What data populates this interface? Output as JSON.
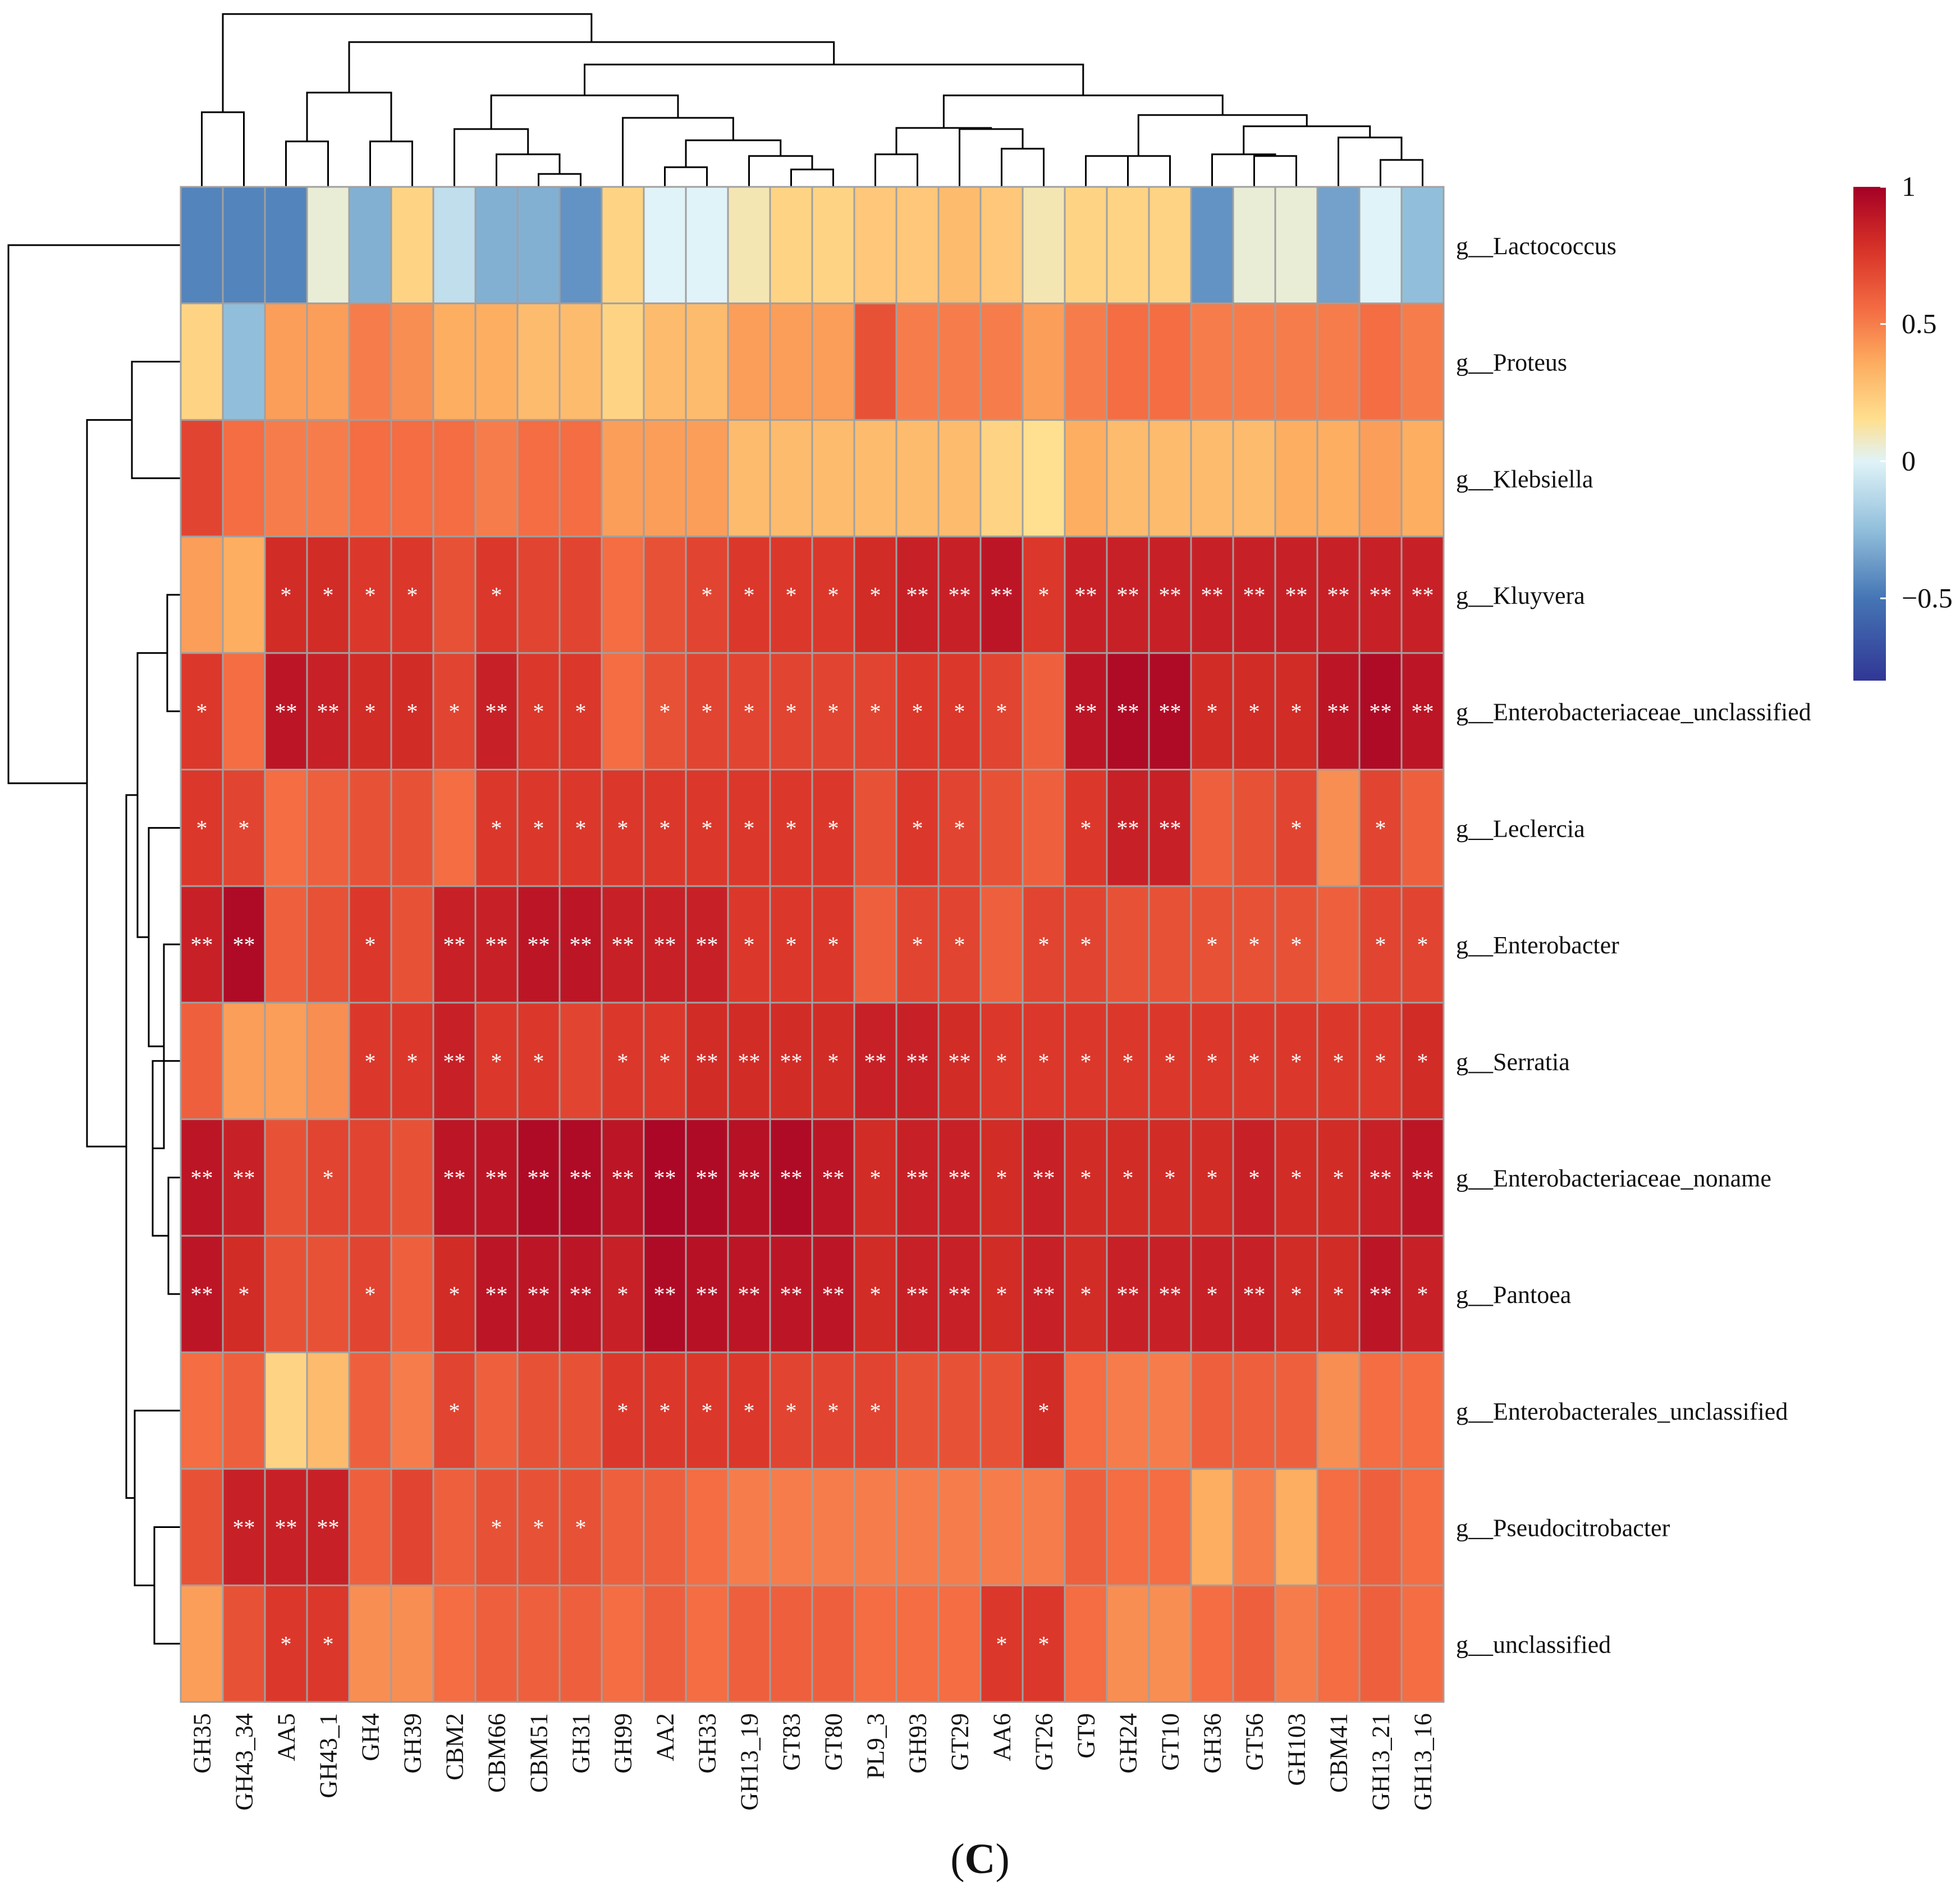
{
  "chart_data": {
    "type": "heatmap",
    "title": "",
    "caption_open": "(",
    "caption_letter": "C",
    "caption_close": ")",
    "columns": [
      "GH35",
      "GH43_34",
      "AA5",
      "GH43_1",
      "GH4",
      "GH39",
      "CBM2",
      "CBM66",
      "CBM51",
      "GH31",
      "GH99",
      "AA2",
      "GH33",
      "GH13_19",
      "GT83",
      "GT80",
      "PL9_3",
      "GH93",
      "GT29",
      "AA6",
      "GT26",
      "GT9",
      "GH24",
      "GT10",
      "GH36",
      "GT56",
      "GH103",
      "CBM41",
      "GH13_21",
      "GH13_16"
    ],
    "rows": [
      "g__Lactococcus",
      "g__Proteus",
      "g__Klebsiella",
      "g__Kluyvera",
      "g__Enterobacteriaceae_unclassified",
      "g__Leclercia",
      "g__Enterobacter",
      "g__Serratia",
      "g__Enterobacteriaceae_noname",
      "g__Pantoea",
      "g__Enterobacterales_unclassified",
      "g__Pseudocitrobacter",
      "g__unclassified"
    ],
    "values": [
      [
        -0.45,
        -0.45,
        -0.45,
        0.05,
        -0.3,
        0.2,
        -0.1,
        -0.3,
        -0.3,
        -0.4,
        0.2,
        0.0,
        0.0,
        0.1,
        0.2,
        0.2,
        0.25,
        0.25,
        0.3,
        0.25,
        0.1,
        0.2,
        0.2,
        0.2,
        -0.4,
        0.05,
        0.05,
        -0.35,
        0.0,
        -0.25
      ],
      [
        0.2,
        -0.25,
        0.4,
        0.4,
        0.5,
        0.45,
        0.35,
        0.35,
        0.3,
        0.3,
        0.2,
        0.3,
        0.3,
        0.4,
        0.4,
        0.4,
        0.65,
        0.5,
        0.5,
        0.5,
        0.4,
        0.5,
        0.55,
        0.55,
        0.5,
        0.5,
        0.5,
        0.5,
        0.55,
        0.5
      ],
      [
        0.7,
        0.55,
        0.5,
        0.5,
        0.55,
        0.55,
        0.55,
        0.5,
        0.55,
        0.55,
        0.4,
        0.4,
        0.4,
        0.3,
        0.3,
        0.3,
        0.3,
        0.3,
        0.3,
        0.2,
        0.15,
        0.35,
        0.3,
        0.3,
        0.3,
        0.3,
        0.35,
        0.35,
        0.4,
        0.35
      ],
      [
        0.4,
        0.35,
        0.8,
        0.8,
        0.75,
        0.75,
        0.65,
        0.75,
        0.7,
        0.7,
        0.55,
        0.65,
        0.7,
        0.75,
        0.75,
        0.75,
        0.8,
        0.85,
        0.85,
        0.9,
        0.75,
        0.85,
        0.85,
        0.85,
        0.85,
        0.85,
        0.85,
        0.85,
        0.85,
        0.85
      ],
      [
        0.75,
        0.55,
        0.9,
        0.85,
        0.8,
        0.8,
        0.7,
        0.85,
        0.75,
        0.75,
        0.55,
        0.65,
        0.7,
        0.7,
        0.7,
        0.7,
        0.7,
        0.75,
        0.75,
        0.7,
        0.6,
        0.9,
        0.95,
        0.95,
        0.8,
        0.8,
        0.8,
        0.9,
        0.95,
        0.9
      ],
      [
        0.75,
        0.7,
        0.55,
        0.6,
        0.65,
        0.65,
        0.55,
        0.75,
        0.75,
        0.75,
        0.75,
        0.75,
        0.75,
        0.75,
        0.75,
        0.75,
        0.65,
        0.75,
        0.7,
        0.65,
        0.6,
        0.75,
        0.85,
        0.85,
        0.6,
        0.65,
        0.7,
        0.45,
        0.7,
        0.6
      ],
      [
        0.85,
        0.95,
        0.6,
        0.65,
        0.75,
        0.65,
        0.85,
        0.85,
        0.9,
        0.9,
        0.85,
        0.85,
        0.85,
        0.75,
        0.75,
        0.75,
        0.6,
        0.7,
        0.7,
        0.6,
        0.7,
        0.7,
        0.65,
        0.65,
        0.65,
        0.65,
        0.65,
        0.6,
        0.7,
        0.7
      ],
      [
        0.6,
        0.4,
        0.4,
        0.45,
        0.75,
        0.75,
        0.85,
        0.75,
        0.75,
        0.7,
        0.75,
        0.75,
        0.8,
        0.8,
        0.8,
        0.8,
        0.85,
        0.85,
        0.8,
        0.75,
        0.75,
        0.75,
        0.75,
        0.75,
        0.75,
        0.75,
        0.75,
        0.75,
        0.75,
        0.8
      ],
      [
        0.9,
        0.85,
        0.65,
        0.7,
        0.7,
        0.65,
        0.9,
        0.9,
        0.95,
        0.95,
        0.9,
        0.97,
        0.95,
        0.92,
        0.95,
        0.9,
        0.8,
        0.85,
        0.85,
        0.8,
        0.85,
        0.8,
        0.8,
        0.8,
        0.8,
        0.85,
        0.8,
        0.8,
        0.85,
        0.9
      ],
      [
        0.9,
        0.8,
        0.65,
        0.65,
        0.7,
        0.6,
        0.8,
        0.9,
        0.9,
        0.9,
        0.85,
        0.95,
        0.92,
        0.9,
        0.9,
        0.9,
        0.8,
        0.85,
        0.85,
        0.8,
        0.85,
        0.8,
        0.85,
        0.85,
        0.85,
        0.85,
        0.8,
        0.8,
        0.9,
        0.85
      ],
      [
        0.55,
        0.6,
        0.2,
        0.3,
        0.6,
        0.5,
        0.7,
        0.6,
        0.65,
        0.65,
        0.75,
        0.75,
        0.75,
        0.75,
        0.7,
        0.7,
        0.7,
        0.65,
        0.65,
        0.65,
        0.8,
        0.55,
        0.5,
        0.5,
        0.6,
        0.6,
        0.6,
        0.45,
        0.55,
        0.55
      ],
      [
        0.65,
        0.85,
        0.85,
        0.85,
        0.6,
        0.7,
        0.6,
        0.65,
        0.65,
        0.65,
        0.6,
        0.6,
        0.55,
        0.5,
        0.5,
        0.5,
        0.5,
        0.5,
        0.5,
        0.5,
        0.5,
        0.6,
        0.55,
        0.55,
        0.35,
        0.5,
        0.35,
        0.55,
        0.6,
        0.55
      ],
      [
        0.4,
        0.65,
        0.75,
        0.75,
        0.45,
        0.45,
        0.55,
        0.6,
        0.6,
        0.6,
        0.55,
        0.6,
        0.55,
        0.6,
        0.6,
        0.6,
        0.55,
        0.55,
        0.55,
        0.75,
        0.75,
        0.55,
        0.45,
        0.45,
        0.55,
        0.6,
        0.5,
        0.55,
        0.6,
        0.55
      ]
    ],
    "significance": [
      [
        "",
        "",
        "",
        "",
        "",
        "",
        "",
        "",
        "",
        "",
        "",
        "",
        "",
        "",
        "",
        "",
        "",
        "",
        "",
        "",
        "",
        "",
        "",
        "",
        "",
        "",
        "",
        "",
        "",
        ""
      ],
      [
        "",
        "",
        "",
        "",
        "",
        "",
        "",
        "",
        "",
        "",
        "",
        "",
        "",
        "",
        "",
        "",
        "",
        "",
        "",
        "",
        "",
        "",
        "",
        "",
        "",
        "",
        "",
        "",
        "",
        ""
      ],
      [
        "",
        "",
        "",
        "",
        "",
        "",
        "",
        "",
        "",
        "",
        "",
        "",
        "",
        "",
        "",
        "",
        "",
        "",
        "",
        "",
        "",
        "",
        "",
        "",
        "",
        "",
        "",
        "",
        "",
        ""
      ],
      [
        "",
        "",
        "*",
        "*",
        "*",
        "*",
        "",
        "*",
        "",
        "",
        "",
        "",
        "*",
        "*",
        "*",
        "*",
        "*",
        "**",
        "**",
        "**",
        "*",
        "**",
        "**",
        "**",
        "**",
        "**",
        "**",
        "**",
        "**",
        "**"
      ],
      [
        "*",
        "",
        "**",
        "**",
        "*",
        "*",
        "*",
        "**",
        "*",
        "*",
        "",
        "*",
        "*",
        "*",
        "*",
        "*",
        "*",
        "*",
        "*",
        "*",
        "",
        "**",
        "**",
        "**",
        "*",
        "*",
        "*",
        "**",
        "**",
        "**"
      ],
      [
        "*",
        "*",
        "",
        "",
        "",
        "",
        "",
        "*",
        "*",
        "*",
        "*",
        "*",
        "*",
        "*",
        "*",
        "*",
        "",
        "*",
        "*",
        "",
        "",
        "*",
        "**",
        "**",
        "",
        "",
        "*",
        "",
        "*",
        ""
      ],
      [
        "**",
        "**",
        "",
        "",
        "*",
        "",
        "**",
        "**",
        "**",
        "**",
        "**",
        "**",
        "**",
        "*",
        "*",
        "*",
        "",
        "*",
        "*",
        "",
        "*",
        "*",
        "",
        "",
        "*",
        "*",
        "*",
        "",
        "*",
        "*"
      ],
      [
        "",
        "",
        "",
        "",
        "*",
        "*",
        "**",
        "*",
        "*",
        "",
        "*",
        "*",
        "**",
        "**",
        "**",
        "*",
        "**",
        "**",
        "**",
        "*",
        "*",
        "*",
        "*",
        "*",
        "*",
        "*",
        "*",
        "*",
        "*",
        "*"
      ],
      [
        "**",
        "**",
        "",
        "*",
        "",
        "",
        "**",
        "**",
        "**",
        "**",
        "**",
        "**",
        "**",
        "**",
        "**",
        "**",
        "*",
        "**",
        "**",
        "*",
        "**",
        "*",
        "*",
        "*",
        "*",
        "*",
        "*",
        "*",
        "**",
        "**"
      ],
      [
        "**",
        "*",
        "",
        "",
        "*",
        "",
        "*",
        "**",
        "**",
        "**",
        "*",
        "**",
        "**",
        "**",
        "**",
        "**",
        "*",
        "**",
        "**",
        "*",
        "**",
        "*",
        "**",
        "**",
        "*",
        "**",
        "*",
        "*",
        "**",
        "*"
      ],
      [
        "",
        "",
        "",
        "",
        "",
        "",
        "*",
        "",
        "",
        "",
        "*",
        "*",
        "*",
        "*",
        "*",
        "*",
        "*",
        "",
        "",
        "",
        "*",
        "",
        "",
        "",
        "",
        "",
        "",
        "",
        "",
        ""
      ],
      [
        "",
        "**",
        "**",
        "**",
        "",
        "",
        "",
        "*",
        "*",
        "*",
        "",
        "",
        "",
        "",
        "",
        "",
        "",
        "",
        "",
        "",
        "",
        "",
        "",
        "",
        "",
        "",
        "",
        "",
        "",
        ""
      ],
      [
        "",
        "",
        "*",
        "*",
        "",
        "",
        "",
        "",
        "",
        "",
        "",
        "",
        "",
        "",
        "",
        "",
        "",
        "",
        "",
        "*",
        "*",
        "",
        "",
        "",
        "",
        "",
        "",
        "",
        "",
        ""
      ]
    ],
    "col_dendrogram": [
      [
        0,
        1,
        0.74,
        2
      ],
      [
        2,
        3,
        0.78,
        2
      ],
      [
        4,
        5,
        0.78,
        2
      ],
      [
        35,
        36,
        0.61,
        4
      ],
      [
        12,
        13,
        0.42,
        2
      ],
      [
        14,
        15,
        0.42,
        2
      ],
      [
        37,
        38,
        0.27,
        4
      ],
      [
        9,
        40,
        0.46,
        5
      ],
      [
        8,
        41,
        0.6,
        6
      ],
      [
        7,
        42,
        0.74,
        7
      ],
      [
        10,
        11,
        0.46,
        2
      ],
      [
        44,
        39,
        0.66,
        6
      ],
      [
        45,
        38,
        0.56,
        3
      ],
      [
        6,
        43,
        0.9,
        8
      ],
      [
        22,
        23,
        0.78,
        2
      ],
      [
        24,
        25,
        0.82,
        2
      ],
      [
        26,
        27,
        0.6,
        2
      ],
      [
        28,
        29,
        0.62,
        2
      ],
      [
        49,
        50,
        0.78,
        4
      ],
      [
        52,
        53,
        0.8,
        6
      ],
      [
        51,
        54,
        0.9,
        10
      ],
      [
        16,
        17,
        0.78,
        2
      ],
      [
        18,
        19,
        0.78,
        2
      ],
      [
        56,
        57,
        0.88,
        4
      ],
      [
        20,
        21,
        0.98,
        2
      ],
      [
        58,
        59,
        1.14,
        6
      ],
      [
        55,
        60,
        1.3,
        16
      ],
      [
        46,
        61,
        0.0,
        0
      ],
      [
        34,
        62,
        0.0,
        0
      ],
      [
        30,
        63,
        0.0,
        0
      ]
    ],
    "colorbar": {
      "min": -0.8,
      "max": 1.0,
      "ticks": [
        1,
        0.5,
        0,
        -0.5
      ],
      "tick_labels": [
        "1",
        "0.5",
        "0",
        "−0.5"
      ]
    },
    "colors": {
      "low": "#313695",
      "mid": "#ffffbf",
      "high": "#a50026",
      "grid": "#a0a0a0",
      "star": "#ffffff",
      "line": "#000000"
    }
  }
}
